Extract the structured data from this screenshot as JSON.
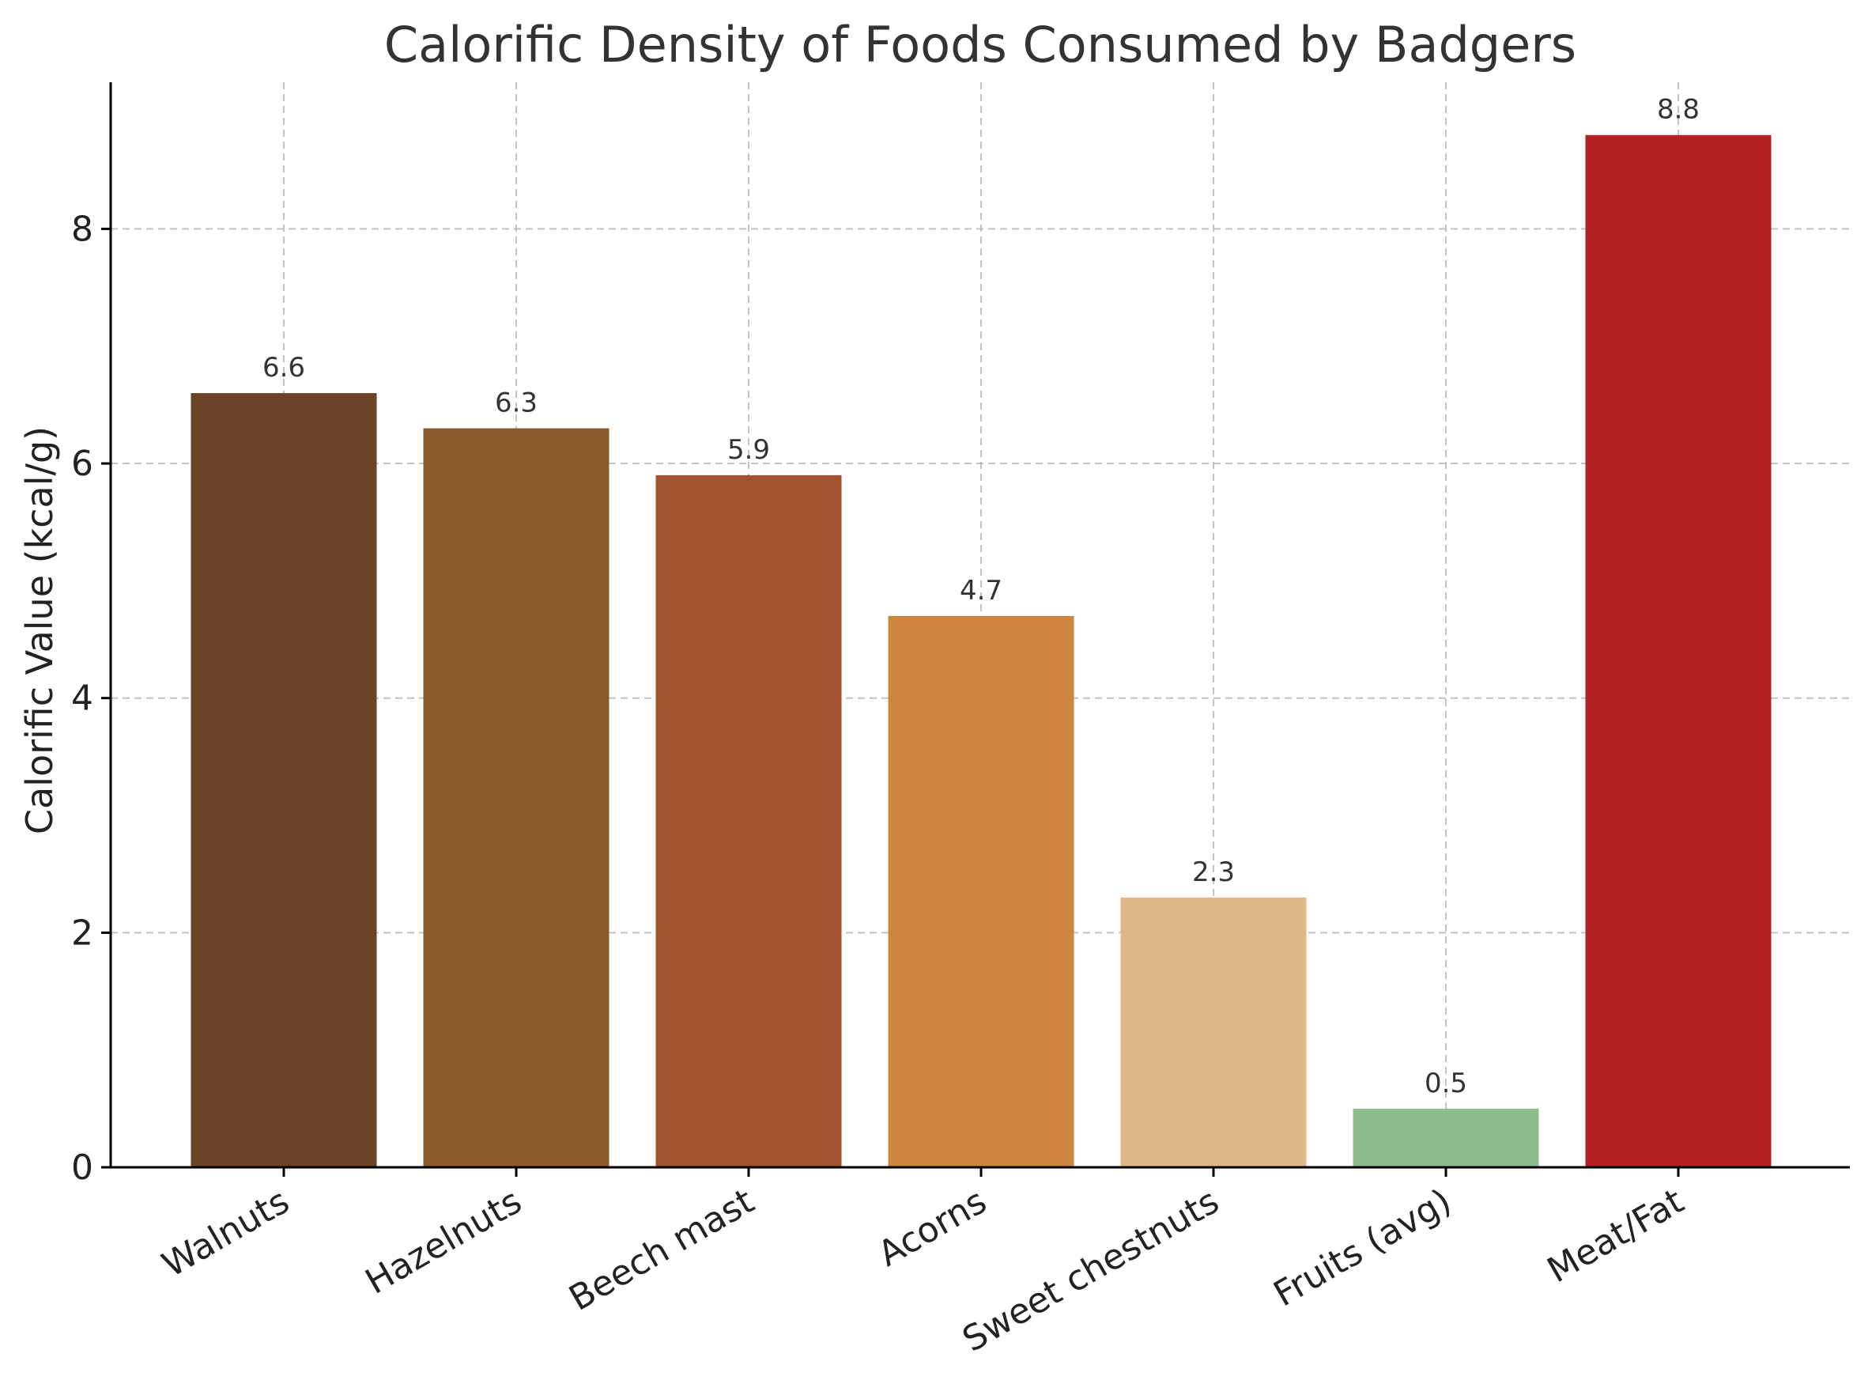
{
  "chart_data": {
    "type": "bar",
    "title": "Calorific Density of Foods Consumed by Badgers",
    "xlabel": "",
    "ylabel": "Calorific Value (kcal/g)",
    "categories": [
      "Walnuts",
      "Hazelnuts",
      "Beech mast",
      "Acorns",
      "Sweet chestnuts",
      "Fruits (avg)",
      "Meat/Fat"
    ],
    "values": [
      6.6,
      6.3,
      5.9,
      4.7,
      2.3,
      0.5,
      8.8
    ],
    "data_labels": [
      "6.6",
      "6.3",
      "5.9",
      "4.7",
      "2.3",
      "0.5",
      "8.8"
    ],
    "colors": [
      "#6b4226",
      "#8b5a2b",
      "#a0522d",
      "#cd853f",
      "#deb887",
      "#8fbc8f",
      "#b22222"
    ],
    "ylim": [
      0,
      9.25
    ],
    "yticks": [
      0,
      2,
      4,
      6,
      8
    ],
    "grid": true,
    "legend": "none"
  }
}
